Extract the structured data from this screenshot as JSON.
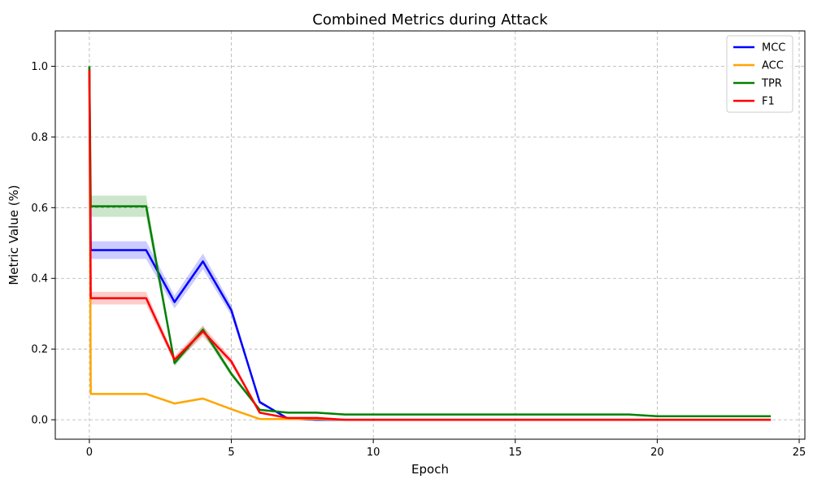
{
  "chart_data": {
    "type": "line",
    "title": "Combined Metrics during Attack",
    "xlabel": "Epoch",
    "ylabel": "Metric Value (%)",
    "xlim": [
      -1.2,
      25.2
    ],
    "ylim": [
      -0.055,
      1.1
    ],
    "xticks": [
      0,
      5,
      10,
      15,
      20,
      25
    ],
    "yticks": [
      0.0,
      0.2,
      0.4,
      0.6,
      0.8,
      1.0
    ],
    "ytick_labels": [
      "0.0",
      "0.2",
      "0.4",
      "0.6",
      "0.8",
      "1.0"
    ],
    "grid": true,
    "legend_position": "top-right",
    "series": [
      {
        "name": "MCC",
        "color": "#0000ff",
        "x": [
          0,
          0.05,
          1,
          2,
          3,
          4,
          5,
          6,
          7,
          8,
          9,
          10,
          11,
          12,
          13,
          14,
          15,
          16,
          17,
          18,
          19,
          20,
          21,
          22,
          23,
          24
        ],
        "values": [
          1.0,
          0.48,
          0.48,
          0.48,
          0.333,
          0.448,
          0.31,
          0.05,
          0.003,
          0.0,
          0.0,
          0.0,
          0.0,
          0.0,
          0.0,
          0.0,
          0.0,
          0.0,
          0.0,
          0.0,
          0.0,
          0.0,
          0.0,
          0.0,
          0.0,
          0.0
        ],
        "band": [
          0.04,
          0.025,
          0.025,
          0.025,
          0.018,
          0.022,
          0.015,
          0.005,
          0.0,
          0.0,
          0.0,
          0.0,
          0.0,
          0.0,
          0.0,
          0.0,
          0.0,
          0.0,
          0.0,
          0.0,
          0.0,
          0.0,
          0.0,
          0.0,
          0.0,
          0.0
        ]
      },
      {
        "name": "ACC",
        "color": "#ffa500",
        "x": [
          0,
          0.05,
          1,
          2,
          3,
          4,
          5,
          6,
          7,
          8,
          9,
          10,
          11,
          12,
          13,
          14,
          15,
          16,
          17,
          18,
          19,
          20,
          21,
          22,
          23,
          24
        ],
        "values": [
          1.0,
          0.073,
          0.073,
          0.073,
          0.046,
          0.06,
          0.03,
          0.002,
          0.002,
          0.002,
          0.0,
          0.0,
          0.0,
          0.0,
          0.0,
          0.0,
          0.0,
          0.0,
          0.0,
          0.0,
          0.0,
          0.0,
          0.0,
          0.0,
          0.0,
          0.0
        ],
        "band": [
          0.03,
          0.003,
          0.003,
          0.003,
          0.003,
          0.003,
          0.002,
          0.0,
          0.0,
          0.0,
          0.0,
          0.0,
          0.0,
          0.0,
          0.0,
          0.0,
          0.0,
          0.0,
          0.0,
          0.0,
          0.0,
          0.0,
          0.0,
          0.0,
          0.0,
          0.0
        ]
      },
      {
        "name": "TPR",
        "color": "#008000",
        "x": [
          0,
          0.05,
          1,
          2,
          3,
          4,
          5,
          6,
          7,
          8,
          9,
          10,
          11,
          12,
          13,
          14,
          15,
          16,
          17,
          18,
          19,
          20,
          21,
          22,
          23,
          24
        ],
        "values": [
          1.0,
          0.604,
          0.604,
          0.604,
          0.16,
          0.255,
          0.13,
          0.028,
          0.02,
          0.02,
          0.015,
          0.015,
          0.015,
          0.015,
          0.015,
          0.015,
          0.015,
          0.015,
          0.015,
          0.015,
          0.015,
          0.01,
          0.01,
          0.01,
          0.01,
          0.01
        ],
        "band": [
          0.04,
          0.03,
          0.03,
          0.03,
          0.01,
          0.012,
          0.008,
          0.003,
          0.0,
          0.0,
          0.0,
          0.0,
          0.0,
          0.0,
          0.0,
          0.0,
          0.0,
          0.0,
          0.0,
          0.0,
          0.0,
          0.0,
          0.0,
          0.0,
          0.0,
          0.0
        ]
      },
      {
        "name": "F1",
        "color": "#ff0000",
        "x": [
          0,
          0.05,
          1,
          2,
          3,
          4,
          5,
          6,
          7,
          8,
          9,
          10,
          11,
          12,
          13,
          14,
          15,
          16,
          17,
          18,
          19,
          20,
          21,
          22,
          23,
          24
        ],
        "values": [
          0.99,
          0.344,
          0.344,
          0.344,
          0.17,
          0.25,
          0.165,
          0.02,
          0.005,
          0.005,
          0.0,
          0.0,
          0.0,
          0.0,
          0.0,
          0.0,
          0.0,
          0.0,
          0.0,
          0.0,
          0.0,
          0.0,
          0.0,
          0.0,
          0.0,
          0.0
        ],
        "band": [
          0.04,
          0.018,
          0.018,
          0.018,
          0.01,
          0.015,
          0.01,
          0.003,
          0.0,
          0.0,
          0.0,
          0.0,
          0.0,
          0.0,
          0.0,
          0.0,
          0.0,
          0.0,
          0.0,
          0.0,
          0.0,
          0.0,
          0.0,
          0.0,
          0.0,
          0.0
        ]
      }
    ]
  }
}
